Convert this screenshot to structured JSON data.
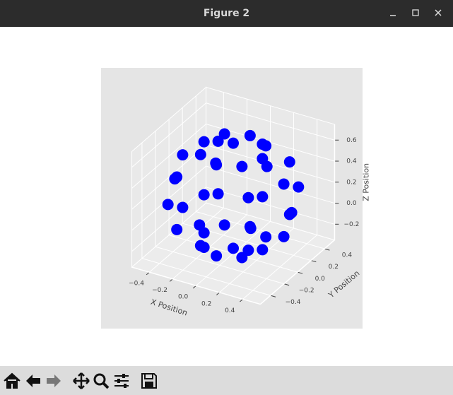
{
  "window": {
    "title": "Figure 2"
  },
  "chart_data": {
    "type": "scatter3d",
    "x": [
      0.5,
      0.354,
      0,
      -0.354,
      -0.5,
      -0.354,
      0,
      0.354,
      0.433,
      0.306,
      0,
      -0.306,
      -0.433,
      -0.306,
      0,
      0.306,
      0.433,
      0.306,
      0,
      -0.306,
      -0.433,
      -0.306,
      0,
      0.306,
      0.25,
      0.177,
      0,
      -0.177,
      -0.25,
      -0.177,
      0,
      0.177,
      0.25,
      0.177,
      0,
      -0.177,
      -0.25,
      -0.177,
      0,
      0.177,
      0,
      0
    ],
    "y": [
      0,
      0.354,
      0.5,
      0.354,
      0,
      -0.354,
      -0.5,
      -0.354,
      0,
      0.306,
      0.433,
      0.306,
      0,
      -0.306,
      -0.433,
      -0.306,
      0,
      0.306,
      0.433,
      0.306,
      0,
      -0.306,
      -0.433,
      -0.306,
      0,
      0.177,
      0.25,
      0.177,
      0,
      -0.177,
      -0.25,
      -0.177,
      0,
      0.177,
      0.25,
      0.177,
      0,
      -0.177,
      -0.25,
      -0.177,
      0,
      0
    ],
    "z": [
      0.2,
      0.2,
      0.2,
      0.2,
      0.2,
      0.2,
      0.2,
      0.2,
      0.45,
      0.45,
      0.45,
      0.45,
      0.45,
      0.45,
      0.45,
      0.45,
      -0.05,
      -0.05,
      -0.05,
      -0.05,
      -0.05,
      -0.05,
      -0.05,
      -0.05,
      0.633,
      0.633,
      0.633,
      0.633,
      0.633,
      0.633,
      0.633,
      0.633,
      -0.233,
      -0.233,
      -0.233,
      -0.233,
      -0.233,
      -0.233,
      -0.233,
      -0.233,
      0.7,
      -0.3
    ],
    "color": "#0000ff",
    "xlabel": "X Position",
    "ylabel": "Y Position",
    "zlabel": "Z Position",
    "xlim": [
      -0.55,
      0.55
    ],
    "ylim": [
      -0.55,
      0.55
    ],
    "zlim": [
      -0.35,
      0.75
    ],
    "xticks": [
      {
        "value": -0.4,
        "label": "−0.4"
      },
      {
        "value": -0.2,
        "label": "−0.2"
      },
      {
        "value": 0,
        "label": "0.0"
      },
      {
        "value": 0.2,
        "label": "0.2"
      },
      {
        "value": 0.4,
        "label": "0.4"
      }
    ],
    "yticks": [
      {
        "value": -0.4,
        "label": "−0.4"
      },
      {
        "value": -0.2,
        "label": "−0.2"
      },
      {
        "value": 0,
        "label": "0.0"
      },
      {
        "value": 0.2,
        "label": "0.2"
      },
      {
        "value": 0.4,
        "label": "0.4"
      }
    ],
    "zticks": [
      {
        "value": -0.2,
        "label": "−0.2"
      },
      {
        "value": 0,
        "label": "0.0"
      },
      {
        "value": 0.2,
        "label": "0.2"
      },
      {
        "value": 0.4,
        "label": "0.4"
      },
      {
        "value": 0.6,
        "label": "0.6"
      }
    ],
    "grid": true
  }
}
